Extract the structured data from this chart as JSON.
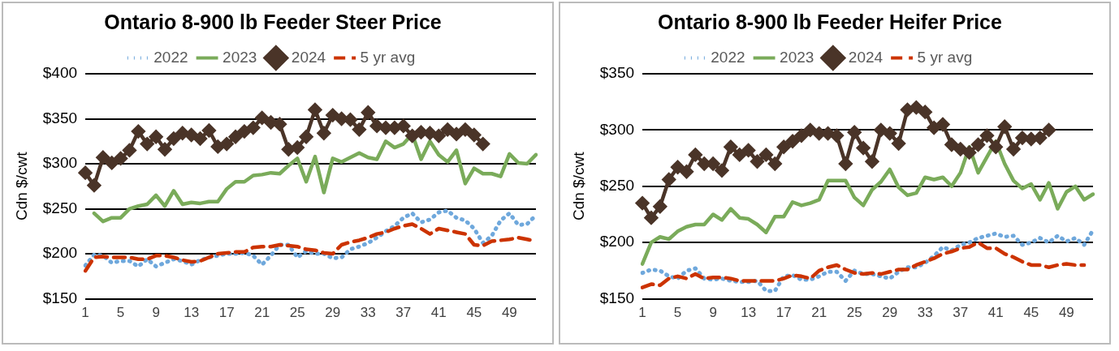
{
  "chart_data": [
    {
      "type": "line",
      "title": "Ontario 8-900 lb Feeder Steer Price",
      "ylabel": "Cdn $/cwt",
      "categories": [
        "1",
        null,
        null,
        null,
        "5",
        null,
        null,
        null,
        "9",
        null,
        null,
        null,
        "13",
        null,
        null,
        null,
        "17",
        null,
        null,
        null,
        "21",
        null,
        null,
        null,
        "25",
        null,
        null,
        null,
        "29",
        null,
        null,
        null,
        "33",
        null,
        null,
        null,
        "37",
        null,
        null,
        null,
        "41",
        null,
        null,
        null,
        "45",
        null,
        null,
        null,
        "49",
        null,
        null,
        null
      ],
      "ylim": [
        150,
        400
      ],
      "yticks": [
        {
          "value": 150,
          "label": "$150"
        },
        {
          "value": 200,
          "label": "$200"
        },
        {
          "value": 250,
          "label": "$250"
        },
        {
          "value": 300,
          "label": "$300"
        },
        {
          "value": 350,
          "label": "$350"
        },
        {
          "value": 400,
          "label": "$400"
        }
      ],
      "grid": "y",
      "legend": "top",
      "marker": "none",
      "series": [
        {
          "name": "2022",
          "color": "#6fa8dc",
          "line_style": "dotted",
          "values": [
            187,
            199,
            198,
            190,
            192,
            192,
            186,
            194,
            186,
            190,
            194,
            192,
            188,
            193,
            196,
            198,
            200,
            200,
            201,
            198,
            188,
            198,
            210,
            210,
            196,
            203,
            200,
            200,
            195,
            196,
            205,
            208,
            212,
            218,
            225,
            231,
            240,
            245,
            235,
            238,
            246,
            248,
            240,
            237,
            228,
            212,
            220,
            237,
            245,
            232,
            233,
            243
          ]
        },
        {
          "name": "2023",
          "color": "#7aab5a",
          "line_style": "solid",
          "values": [
            null,
            245,
            236,
            240,
            240,
            250,
            253,
            255,
            265,
            253,
            270,
            255,
            257,
            256,
            258,
            258,
            272,
            280,
            280,
            287,
            288,
            290,
            289,
            298,
            306,
            280,
            308,
            268,
            306,
            302,
            307,
            312,
            307,
            305,
            325,
            318,
            322,
            333,
            305,
            325,
            310,
            302,
            315,
            278,
            295,
            289,
            289,
            286,
            311,
            301,
            300,
            310
          ]
        },
        {
          "name": "2024",
          "color": "#4a3428",
          "line_style": "solid",
          "marker": "diamond",
          "values": [
            290,
            276,
            307,
            301,
            306,
            315,
            336,
            322,
            330,
            316,
            328,
            334,
            332,
            328,
            337,
            319,
            322,
            330,
            336,
            340,
            351,
            346,
            344,
            316,
            318,
            330,
            360,
            334,
            354,
            350,
            349,
            338,
            357,
            342,
            340,
            340,
            342,
            331,
            335,
            334,
            331,
            338,
            333,
            338,
            332,
            322,
            null,
            null,
            null,
            null,
            null,
            null
          ]
        },
        {
          "name": "5 yr avg",
          "color": "#cc3300",
          "line_style": "dashed",
          "values": [
            181,
            196,
            197,
            196,
            196,
            196,
            194,
            194,
            198,
            198,
            196,
            193,
            191,
            192,
            196,
            200,
            201,
            202,
            202,
            207,
            208,
            208,
            210,
            209,
            208,
            205,
            204,
            201,
            200,
            210,
            213,
            215,
            218,
            222,
            224,
            228,
            231,
            233,
            228,
            222,
            228,
            226,
            224,
            222,
            210,
            209,
            214,
            215,
            216,
            218,
            216,
            214
          ]
        }
      ]
    },
    {
      "type": "line",
      "title": "Ontario 8-900 lb Feeder Heifer Price",
      "ylabel": "Cdn $/cwt",
      "categories": [
        "1",
        null,
        null,
        null,
        "5",
        null,
        null,
        null,
        "9",
        null,
        null,
        null,
        "13",
        null,
        null,
        null,
        "17",
        null,
        null,
        null,
        "21",
        null,
        null,
        null,
        "25",
        null,
        null,
        null,
        "29",
        null,
        null,
        null,
        "33",
        null,
        null,
        null,
        "37",
        null,
        null,
        null,
        "41",
        null,
        null,
        null,
        "45",
        null,
        null,
        null,
        "49",
        null,
        null,
        null
      ],
      "ylim": [
        150,
        350
      ],
      "yticks": [
        {
          "value": 150,
          "label": "$150"
        },
        {
          "value": 200,
          "label": "$200"
        },
        {
          "value": 250,
          "label": "$250"
        },
        {
          "value": 300,
          "label": "$300"
        },
        {
          "value": 350,
          "label": "$350"
        }
      ],
      "grid": "y",
      "legend": "top",
      "marker": "none",
      "series": [
        {
          "name": "2022",
          "color": "#6fa8dc",
          "line_style": "dotted",
          "values": [
            173,
            176,
            175,
            170,
            168,
            175,
            177,
            168,
            167,
            168,
            166,
            165,
            165,
            166,
            157,
            157,
            170,
            171,
            167,
            167,
            170,
            174,
            174,
            166,
            175,
            172,
            172,
            170,
            168,
            174,
            178,
            178,
            182,
            188,
            196,
            193,
            198,
            200,
            204,
            206,
            208,
            205,
            206,
            198,
            200,
            204,
            200,
            206,
            201,
            204,
            198,
            211
          ]
        },
        {
          "name": "2023",
          "color": "#7aab5a",
          "line_style": "solid",
          "values": [
            181,
            200,
            205,
            203,
            210,
            214,
            216,
            216,
            225,
            220,
            230,
            222,
            221,
            216,
            209,
            223,
            223,
            236,
            233,
            235,
            238,
            255,
            255,
            255,
            240,
            233,
            247,
            254,
            265,
            249,
            242,
            244,
            258,
            256,
            258,
            250,
            262,
            285,
            262,
            276,
            290,
            270,
            255,
            248,
            252,
            238,
            253,
            230,
            245,
            250,
            238,
            243
          ]
        },
        {
          "name": "2024",
          "color": "#4a3428",
          "line_style": "solid",
          "marker": "diamond",
          "values": [
            235,
            222,
            232,
            256,
            267,
            263,
            278,
            270,
            270,
            264,
            285,
            278,
            282,
            272,
            278,
            270,
            285,
            290,
            295,
            300,
            297,
            297,
            295,
            270,
            298,
            284,
            272,
            300,
            297,
            288,
            318,
            320,
            316,
            302,
            305,
            287,
            283,
            280,
            287,
            295,
            285,
            303,
            283,
            293,
            292,
            293,
            300,
            null,
            null,
            null,
            null,
            null
          ]
        },
        {
          "name": "5 yr avg",
          "color": "#cc3300",
          "line_style": "dashed",
          "values": [
            160,
            163,
            162,
            168,
            170,
            168,
            172,
            168,
            169,
            169,
            168,
            166,
            166,
            166,
            166,
            166,
            168,
            171,
            170,
            168,
            175,
            178,
            180,
            176,
            173,
            172,
            173,
            172,
            174,
            176,
            176,
            180,
            183,
            186,
            190,
            192,
            195,
            196,
            200,
            195,
            195,
            190,
            187,
            183,
            180,
            180,
            178,
            180,
            181,
            180,
            180,
            null
          ]
        }
      ]
    }
  ]
}
